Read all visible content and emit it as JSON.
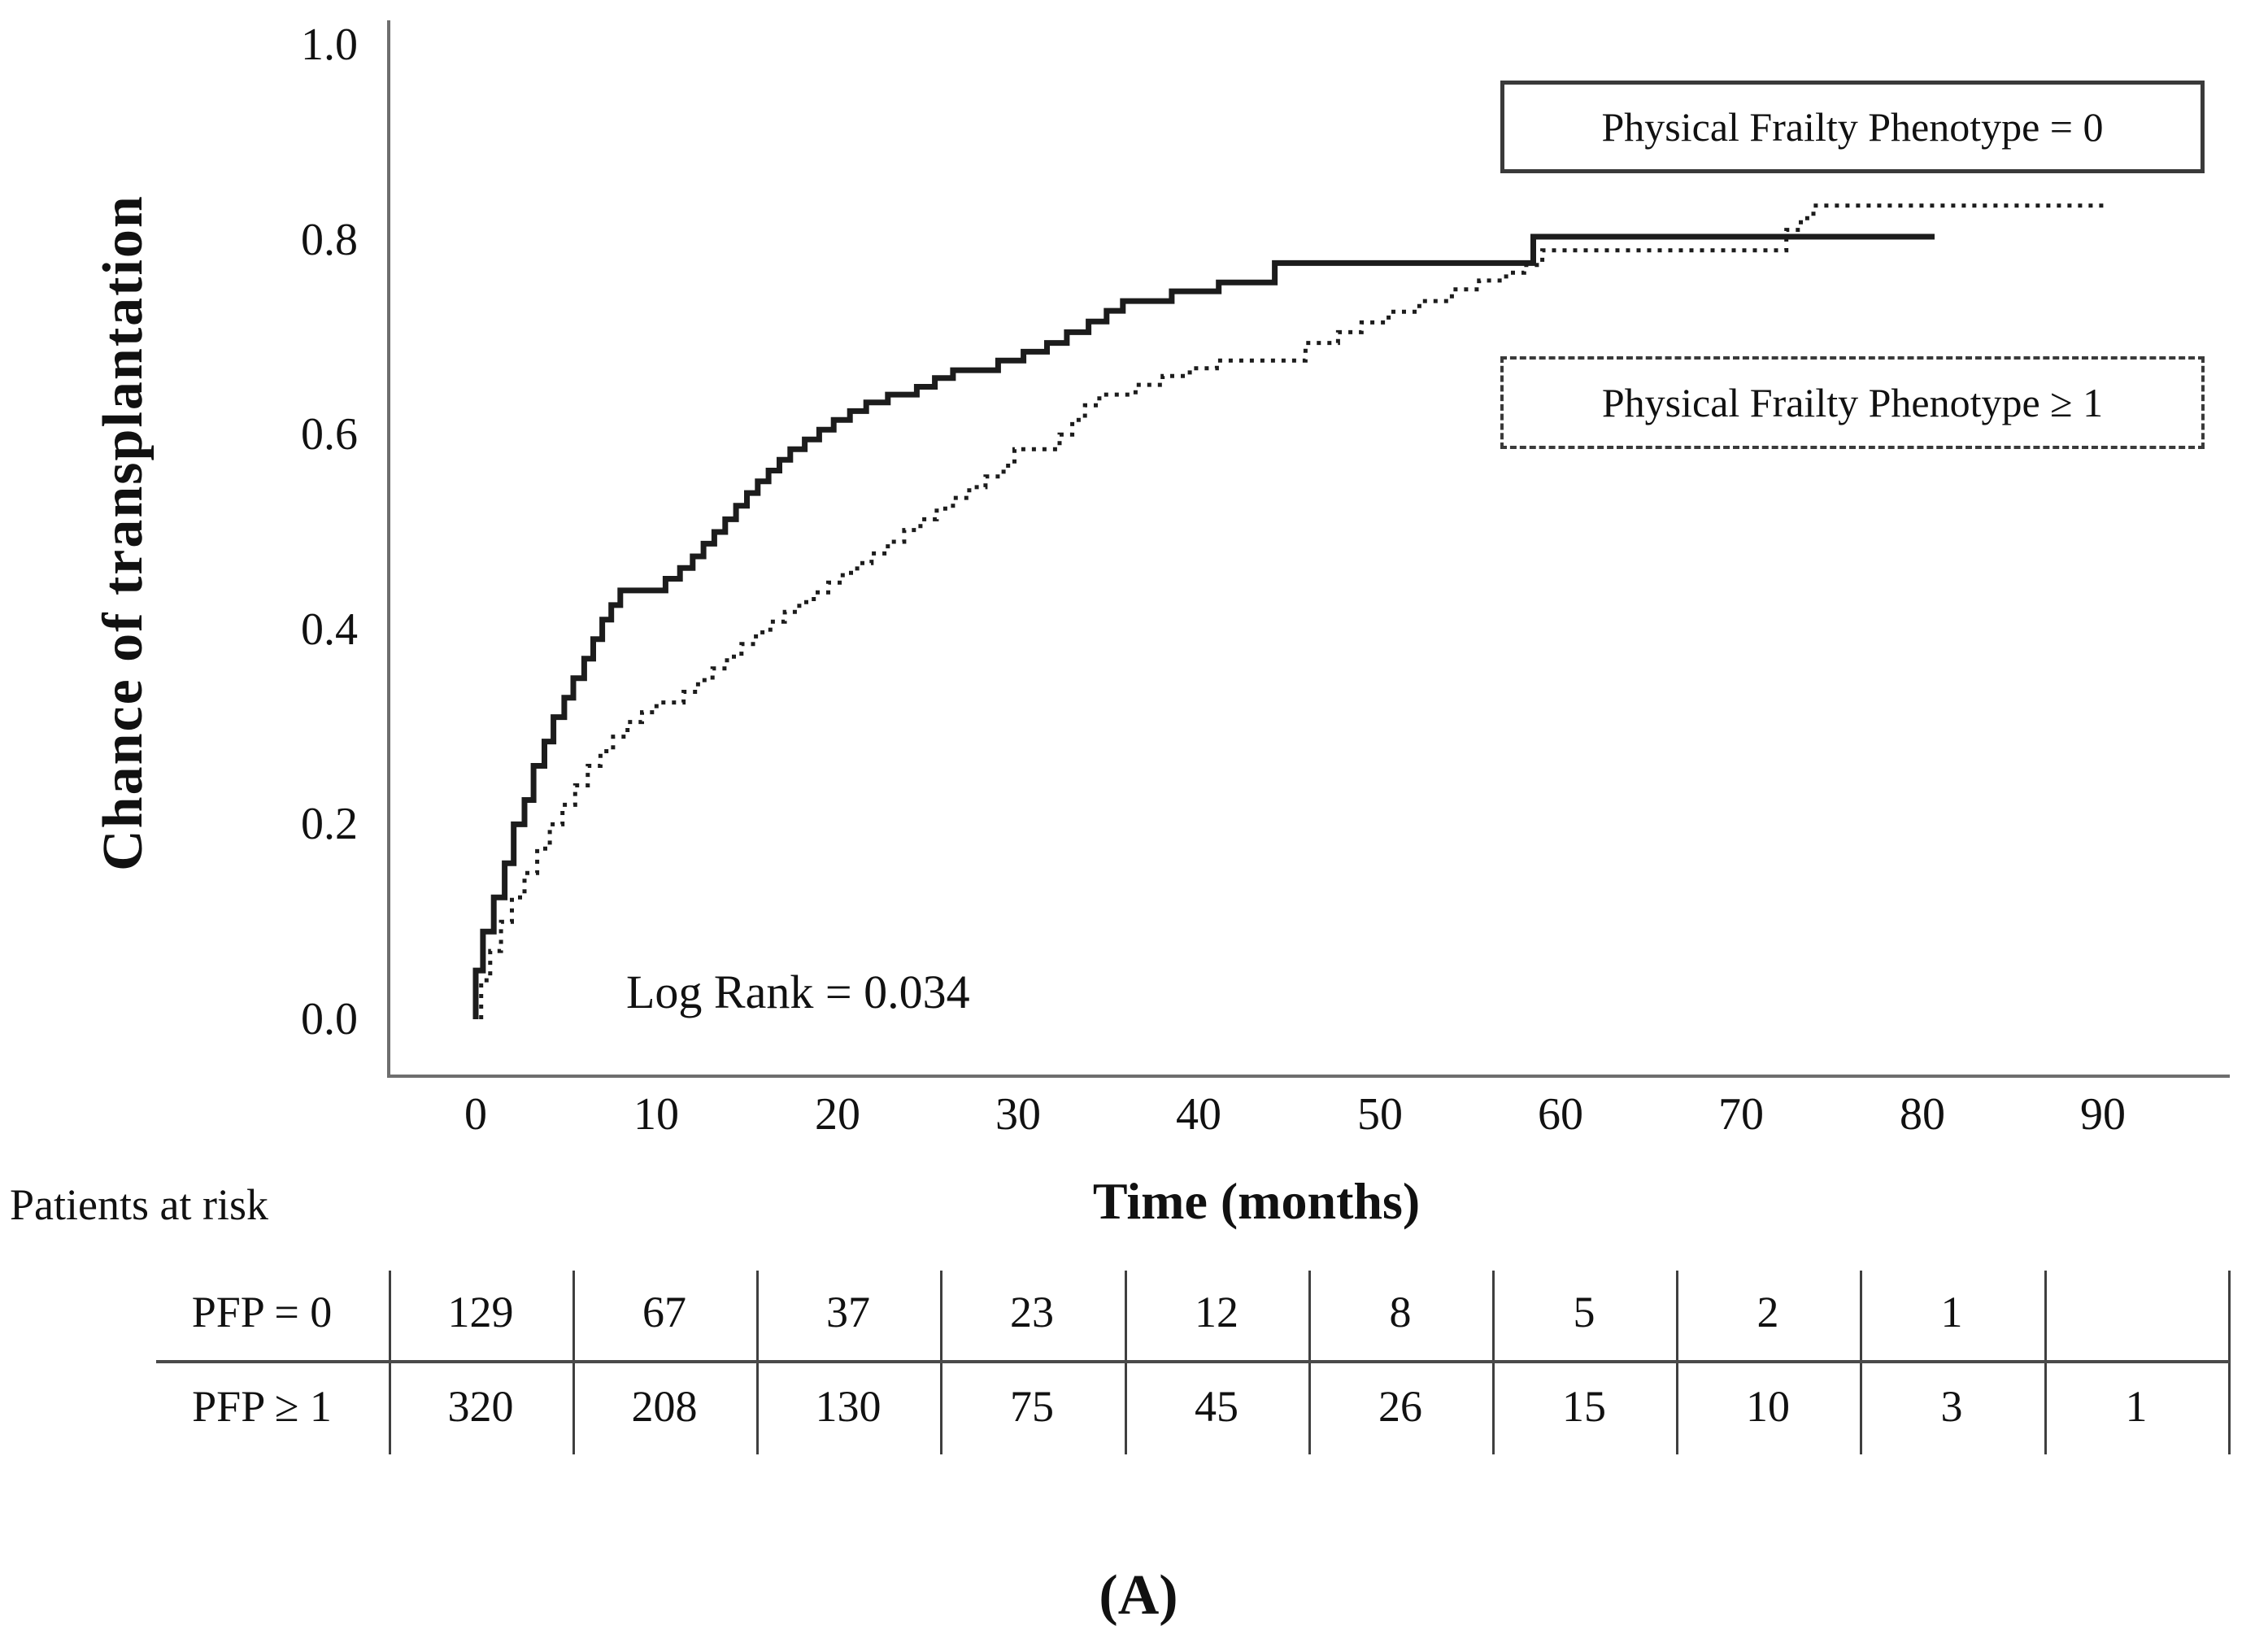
{
  "figure": {
    "panel_label": "(A)"
  },
  "chart": {
    "y_axis": {
      "title": "Chance of transplantation",
      "ticks": [
        "1.0",
        "0.8",
        "0.6",
        "0.4",
        "0.2",
        "0.0"
      ]
    },
    "x_axis": {
      "title": "Time (months)",
      "ticks": [
        "0",
        "10",
        "20",
        "30",
        "40",
        "50",
        "60",
        "70",
        "80",
        "90"
      ]
    },
    "annotation": "Log Rank = 0.034",
    "legend": [
      {
        "label": "Physical Frailty Phenotype = 0",
        "pattern": "solid"
      },
      {
        "label": "Physical Frailty Phenotype ≥ 1",
        "pattern": "dotted"
      }
    ],
    "line_color": "#1c1c1c"
  },
  "chart_data": {
    "type": "line",
    "subtype": "kaplan-meier-step",
    "title": "",
    "xlabel": "Time (months)",
    "ylabel": "Chance of transplantation",
    "xlim": [
      0,
      95
    ],
    "ylim": [
      0.0,
      1.0
    ],
    "y_ticks": [
      0.0,
      0.2,
      0.4,
      0.6,
      0.8,
      1.0
    ],
    "x_ticks": [
      0,
      10,
      20,
      30,
      40,
      50,
      60,
      70,
      80,
      90
    ],
    "grid": false,
    "legend_position": "top-right",
    "annotation": "Log Rank = 0.034",
    "series": [
      {
        "name": "Physical Frailty Phenotype = 0",
        "pattern": "solid",
        "start_month": 0,
        "end_month": 80.7,
        "steps": [
          [
            0,
            0.05
          ],
          [
            0.4,
            0.09
          ],
          [
            1.0,
            0.125
          ],
          [
            1.6,
            0.16
          ],
          [
            2.1,
            0.2
          ],
          [
            2.7,
            0.225
          ],
          [
            3.2,
            0.26
          ],
          [
            3.8,
            0.285
          ],
          [
            4.3,
            0.31
          ],
          [
            4.9,
            0.33
          ],
          [
            5.4,
            0.35
          ],
          [
            6.0,
            0.37
          ],
          [
            6.5,
            0.39
          ],
          [
            7.0,
            0.41
          ],
          [
            7.5,
            0.425
          ],
          [
            8.0,
            0.44
          ],
          [
            10.5,
            0.452
          ],
          [
            11.3,
            0.463
          ],
          [
            12.0,
            0.475
          ],
          [
            12.6,
            0.488
          ],
          [
            13.2,
            0.5
          ],
          [
            13.8,
            0.513
          ],
          [
            14.4,
            0.527
          ],
          [
            15.0,
            0.54
          ],
          [
            15.6,
            0.552
          ],
          [
            16.2,
            0.563
          ],
          [
            16.8,
            0.574
          ],
          [
            17.4,
            0.585
          ],
          [
            18.2,
            0.595
          ],
          [
            19.0,
            0.605
          ],
          [
            19.8,
            0.615
          ],
          [
            20.7,
            0.624
          ],
          [
            21.6,
            0.633
          ],
          [
            22.8,
            0.641
          ],
          [
            24.4,
            0.649
          ],
          [
            25.4,
            0.658
          ],
          [
            26.4,
            0.666
          ],
          [
            28.9,
            0.676
          ],
          [
            30.3,
            0.685
          ],
          [
            31.6,
            0.694
          ],
          [
            32.7,
            0.705
          ],
          [
            33.9,
            0.716
          ],
          [
            34.9,
            0.727
          ],
          [
            35.8,
            0.737
          ],
          [
            38.5,
            0.747
          ],
          [
            41.1,
            0.756
          ],
          [
            44.2,
            0.776
          ],
          [
            58.5,
            0.803
          ]
        ]
      },
      {
        "name": "Physical Frailty Phenotype ≥ 1",
        "pattern": "dotted",
        "start_month": 0.3,
        "end_month": 90.3,
        "steps": [
          [
            0.3,
            0.04
          ],
          [
            0.8,
            0.07
          ],
          [
            1.4,
            0.1
          ],
          [
            2.0,
            0.125
          ],
          [
            2.7,
            0.15
          ],
          [
            3.4,
            0.175
          ],
          [
            4.1,
            0.2
          ],
          [
            4.8,
            0.22
          ],
          [
            5.5,
            0.24
          ],
          [
            6.2,
            0.26
          ],
          [
            6.9,
            0.275
          ],
          [
            7.6,
            0.29
          ],
          [
            8.4,
            0.305
          ],
          [
            9.2,
            0.315
          ],
          [
            10.0,
            0.325
          ],
          [
            11.5,
            0.336
          ],
          [
            12.3,
            0.348
          ],
          [
            13.1,
            0.36
          ],
          [
            13.9,
            0.372
          ],
          [
            14.7,
            0.385
          ],
          [
            15.5,
            0.397
          ],
          [
            16.3,
            0.408
          ],
          [
            17.1,
            0.418
          ],
          [
            17.9,
            0.428
          ],
          [
            18.7,
            0.438
          ],
          [
            19.5,
            0.448
          ],
          [
            20.3,
            0.458
          ],
          [
            21.1,
            0.468
          ],
          [
            21.9,
            0.478
          ],
          [
            22.8,
            0.49
          ],
          [
            23.7,
            0.502
          ],
          [
            24.6,
            0.513
          ],
          [
            25.5,
            0.524
          ],
          [
            26.4,
            0.535
          ],
          [
            27.3,
            0.546
          ],
          [
            28.2,
            0.557
          ],
          [
            29.2,
            0.568
          ],
          [
            29.8,
            0.585
          ],
          [
            32.3,
            0.6
          ],
          [
            33.0,
            0.615
          ],
          [
            33.7,
            0.63
          ],
          [
            34.5,
            0.641
          ],
          [
            36.5,
            0.651
          ],
          [
            38.0,
            0.66
          ],
          [
            39.5,
            0.668
          ],
          [
            41.0,
            0.676
          ],
          [
            45.9,
            0.694
          ],
          [
            47.7,
            0.705
          ],
          [
            49.0,
            0.715
          ],
          [
            50.5,
            0.726
          ],
          [
            52.2,
            0.737
          ],
          [
            54.0,
            0.749
          ],
          [
            55.5,
            0.758
          ],
          [
            57.0,
            0.766
          ],
          [
            58.0,
            0.774
          ],
          [
            59.0,
            0.789
          ],
          [
            72.5,
            0.81
          ],
          [
            73.3,
            0.822
          ],
          [
            74.0,
            0.835
          ]
        ]
      }
    ]
  },
  "risk_table": {
    "caption": "Patients at risk",
    "rows": [
      {
        "label": "PFP = 0",
        "values": [
          "129",
          "67",
          "37",
          "23",
          "12",
          "8",
          "5",
          "2",
          "1",
          ""
        ]
      },
      {
        "label": "PFP ≥ 1",
        "values": [
          "320",
          "208",
          "130",
          "75",
          "45",
          "26",
          "15",
          "10",
          "3",
          "1"
        ]
      }
    ]
  }
}
